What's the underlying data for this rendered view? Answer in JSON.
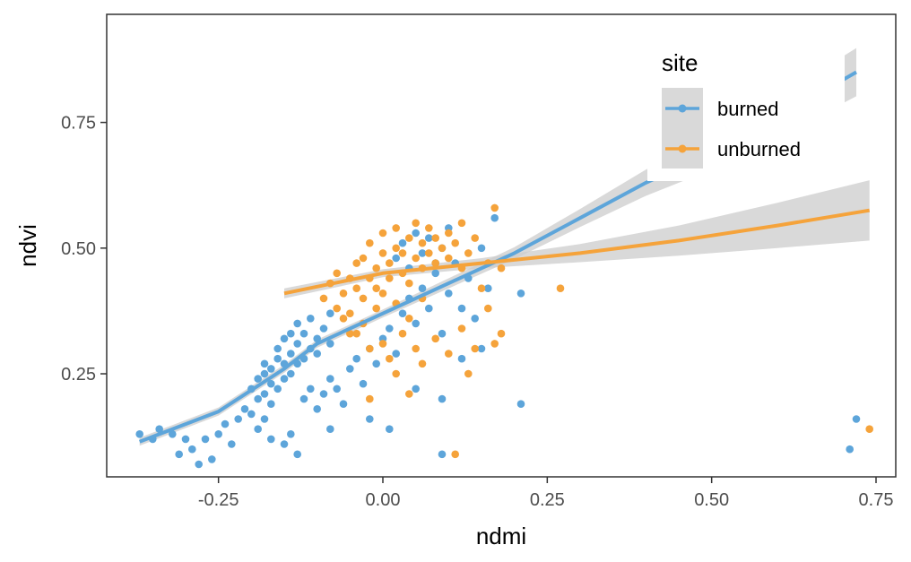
{
  "chart_data": {
    "type": "scatter",
    "xlabel": "ndmi",
    "ylabel": "ndvi",
    "xlim": [
      -0.42,
      0.78
    ],
    "ylim": [
      0.045,
      0.965
    ],
    "x_ticks": [
      -0.25,
      0.0,
      0.25,
      0.5,
      0.75
    ],
    "x_tick_labels": [
      "-0.25",
      "0.00",
      "0.25",
      "0.50",
      "0.75"
    ],
    "y_ticks": [
      0.25,
      0.5,
      0.75
    ],
    "y_tick_labels": [
      "0.25",
      "0.50",
      "0.75"
    ],
    "grid": false,
    "legend": {
      "title": "site",
      "placement": "top-right",
      "entries": [
        "burned",
        "unburned"
      ]
    },
    "series": [
      {
        "name": "burned",
        "color": "#5DA5DA",
        "points": [
          [
            -0.37,
            0.13
          ],
          [
            -0.35,
            0.12
          ],
          [
            -0.34,
            0.14
          ],
          [
            -0.32,
            0.13
          ],
          [
            -0.31,
            0.09
          ],
          [
            -0.3,
            0.12
          ],
          [
            -0.29,
            0.1
          ],
          [
            -0.28,
            0.07
          ],
          [
            -0.27,
            0.12
          ],
          [
            -0.26,
            0.08
          ],
          [
            -0.25,
            0.13
          ],
          [
            -0.24,
            0.15
          ],
          [
            -0.23,
            0.11
          ],
          [
            -0.22,
            0.16
          ],
          [
            -0.21,
            0.18
          ],
          [
            -0.2,
            0.17
          ],
          [
            -0.19,
            0.14
          ],
          [
            -0.18,
            0.16
          ],
          [
            -0.17,
            0.12
          ],
          [
            -0.15,
            0.11
          ],
          [
            -0.14,
            0.13
          ],
          [
            -0.2,
            0.22
          ],
          [
            -0.19,
            0.2
          ],
          [
            -0.19,
            0.24
          ],
          [
            -0.18,
            0.21
          ],
          [
            -0.18,
            0.25
          ],
          [
            -0.18,
            0.27
          ],
          [
            -0.17,
            0.19
          ],
          [
            -0.17,
            0.23
          ],
          [
            -0.17,
            0.26
          ],
          [
            -0.16,
            0.22
          ],
          [
            -0.16,
            0.28
          ],
          [
            -0.16,
            0.3
          ],
          [
            -0.15,
            0.24
          ],
          [
            -0.15,
            0.27
          ],
          [
            -0.15,
            0.32
          ],
          [
            -0.14,
            0.25
          ],
          [
            -0.14,
            0.29
          ],
          [
            -0.14,
            0.33
          ],
          [
            -0.13,
            0.27
          ],
          [
            -0.13,
            0.31
          ],
          [
            -0.13,
            0.35
          ],
          [
            -0.12,
            0.28
          ],
          [
            -0.12,
            0.33
          ],
          [
            -0.11,
            0.3
          ],
          [
            -0.11,
            0.36
          ],
          [
            -0.1,
            0.32
          ],
          [
            -0.1,
            0.29
          ],
          [
            -0.09,
            0.34
          ],
          [
            -0.08,
            0.37
          ],
          [
            -0.08,
            0.31
          ],
          [
            -0.12,
            0.2
          ],
          [
            -0.11,
            0.22
          ],
          [
            -0.1,
            0.18
          ],
          [
            -0.09,
            0.21
          ],
          [
            -0.08,
            0.24
          ],
          [
            -0.07,
            0.22
          ],
          [
            -0.06,
            0.19
          ],
          [
            -0.05,
            0.26
          ],
          [
            -0.04,
            0.28
          ],
          [
            -0.03,
            0.23
          ],
          [
            -0.02,
            0.3
          ],
          [
            -0.01,
            0.27
          ],
          [
            0.0,
            0.32
          ],
          [
            0.01,
            0.34
          ],
          [
            0.02,
            0.29
          ],
          [
            0.03,
            0.37
          ],
          [
            0.04,
            0.4
          ],
          [
            0.05,
            0.35
          ],
          [
            0.06,
            0.42
          ],
          [
            0.07,
            0.38
          ],
          [
            0.08,
            0.45
          ],
          [
            0.09,
            0.33
          ],
          [
            0.1,
            0.41
          ],
          [
            0.11,
            0.47
          ],
          [
            0.12,
            0.38
          ],
          [
            0.13,
            0.44
          ],
          [
            0.14,
            0.36
          ],
          [
            0.15,
            0.5
          ],
          [
            0.16,
            0.42
          ],
          [
            0.17,
            0.56
          ],
          [
            0.02,
            0.48
          ],
          [
            0.03,
            0.51
          ],
          [
            0.04,
            0.46
          ],
          [
            0.05,
            0.53
          ],
          [
            0.06,
            0.49
          ],
          [
            0.07,
            0.52
          ],
          [
            0.08,
            0.47
          ],
          [
            0.09,
            0.5
          ],
          [
            0.1,
            0.54
          ],
          [
            -0.13,
            0.09
          ],
          [
            -0.08,
            0.14
          ],
          [
            -0.02,
            0.16
          ],
          [
            0.01,
            0.14
          ],
          [
            0.05,
            0.22
          ],
          [
            0.09,
            0.2
          ],
          [
            0.09,
            0.09
          ],
          [
            0.12,
            0.28
          ],
          [
            0.15,
            0.3
          ],
          [
            0.21,
            0.19
          ],
          [
            0.21,
            0.41
          ],
          [
            0.72,
            0.16
          ],
          [
            0.71,
            0.1
          ]
        ],
        "trend": [
          [
            -0.37,
            0.115
          ],
          [
            -0.25,
            0.175
          ],
          [
            -0.15,
            0.26
          ],
          [
            -0.1,
            0.31
          ],
          [
            0.0,
            0.37
          ],
          [
            0.1,
            0.43
          ],
          [
            0.2,
            0.49
          ],
          [
            0.3,
            0.56
          ],
          [
            0.4,
            0.63
          ],
          [
            0.5,
            0.69
          ],
          [
            0.6,
            0.76
          ],
          [
            0.72,
            0.85
          ]
        ],
        "band_halfwidth": [
          0.008,
          0.008,
          0.008,
          0.008,
          0.008,
          0.01,
          0.012,
          0.018,
          0.026,
          0.034,
          0.04,
          0.048
        ]
      },
      {
        "name": "unburned",
        "color": "#F5A33B",
        "points": [
          [
            -0.09,
            0.4
          ],
          [
            -0.08,
            0.43
          ],
          [
            -0.07,
            0.38
          ],
          [
            -0.07,
            0.45
          ],
          [
            -0.06,
            0.41
          ],
          [
            -0.05,
            0.44
          ],
          [
            -0.05,
            0.37
          ],
          [
            -0.04,
            0.47
          ],
          [
            -0.04,
            0.42
          ],
          [
            -0.03,
            0.4
          ],
          [
            -0.03,
            0.48
          ],
          [
            -0.02,
            0.44
          ],
          [
            -0.02,
            0.51
          ],
          [
            -0.01,
            0.46
          ],
          [
            -0.01,
            0.42
          ],
          [
            0.0,
            0.49
          ],
          [
            0.0,
            0.53
          ],
          [
            0.01,
            0.44
          ],
          [
            0.01,
            0.47
          ],
          [
            0.02,
            0.5
          ],
          [
            0.02,
            0.54
          ],
          [
            0.03,
            0.45
          ],
          [
            0.03,
            0.49
          ],
          [
            0.04,
            0.52
          ],
          [
            0.04,
            0.43
          ],
          [
            0.05,
            0.48
          ],
          [
            0.05,
            0.55
          ],
          [
            0.06,
            0.46
          ],
          [
            0.06,
            0.51
          ],
          [
            0.07,
            0.49
          ],
          [
            0.07,
            0.54
          ],
          [
            0.08,
            0.47
          ],
          [
            0.08,
            0.52
          ],
          [
            0.09,
            0.5
          ],
          [
            0.1,
            0.48
          ],
          [
            0.1,
            0.53
          ],
          [
            0.11,
            0.51
          ],
          [
            0.12,
            0.46
          ],
          [
            0.12,
            0.55
          ],
          [
            0.13,
            0.49
          ],
          [
            -0.06,
            0.36
          ],
          [
            -0.05,
            0.33
          ],
          [
            -0.03,
            0.35
          ],
          [
            -0.01,
            0.38
          ],
          [
            0.0,
            0.41
          ],
          [
            0.02,
            0.39
          ],
          [
            0.04,
            0.36
          ],
          [
            0.06,
            0.4
          ],
          [
            -0.04,
            0.33
          ],
          [
            -0.02,
            0.3
          ],
          [
            0.0,
            0.31
          ],
          [
            0.01,
            0.28
          ],
          [
            0.02,
            0.25
          ],
          [
            0.03,
            0.33
          ],
          [
            0.05,
            0.3
          ],
          [
            0.06,
            0.27
          ],
          [
            0.08,
            0.32
          ],
          [
            0.1,
            0.29
          ],
          [
            0.12,
            0.34
          ],
          [
            0.14,
            0.3
          ],
          [
            0.16,
            0.38
          ],
          [
            0.17,
            0.58
          ],
          [
            0.18,
            0.46
          ],
          [
            0.18,
            0.33
          ],
          [
            0.17,
            0.31
          ],
          [
            0.15,
            0.42
          ],
          [
            -0.02,
            0.2
          ],
          [
            0.04,
            0.21
          ],
          [
            0.13,
            0.25
          ],
          [
            0.11,
            0.09
          ],
          [
            0.27,
            0.42
          ],
          [
            0.74,
            0.14
          ],
          [
            0.16,
            0.47
          ],
          [
            0.14,
            0.52
          ]
        ],
        "trend": [
          [
            -0.15,
            0.41
          ],
          [
            0.0,
            0.45
          ],
          [
            0.15,
            0.47
          ],
          [
            0.3,
            0.49
          ],
          [
            0.45,
            0.515
          ],
          [
            0.6,
            0.545
          ],
          [
            0.74,
            0.575
          ]
        ],
        "band_halfwidth": [
          0.01,
          0.008,
          0.01,
          0.018,
          0.03,
          0.045,
          0.06
        ]
      }
    ]
  }
}
